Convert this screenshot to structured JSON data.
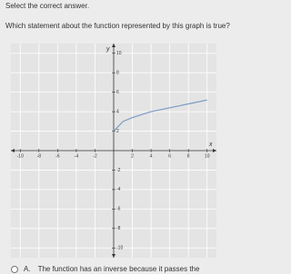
{
  "instruction": "Select the correct answer.",
  "question": "Which statement about the function represented by this graph is true?",
  "chart_data": {
    "type": "line",
    "x_label": "x",
    "y_label": "y",
    "x": [
      0,
      1,
      2,
      3,
      4,
      5,
      6,
      7,
      8,
      9,
      10
    ],
    "values": [
      2,
      3,
      3.4,
      3.7,
      4,
      4.2,
      4.4,
      4.6,
      4.8,
      5,
      5.2
    ],
    "color": "#7a9cc6",
    "xlim": [
      -11,
      11
    ],
    "ylim": [
      -11,
      11
    ],
    "xticks": [
      -10,
      -8,
      -6,
      -4,
      -2,
      2,
      4,
      6,
      8,
      10
    ],
    "yticks": [
      -10,
      -8,
      -6,
      -4,
      -2,
      2,
      4,
      6,
      8,
      10
    ],
    "grid": true
  },
  "options": [
    {
      "letter": "A.",
      "text": "The function has an inverse because it passes the"
    }
  ]
}
